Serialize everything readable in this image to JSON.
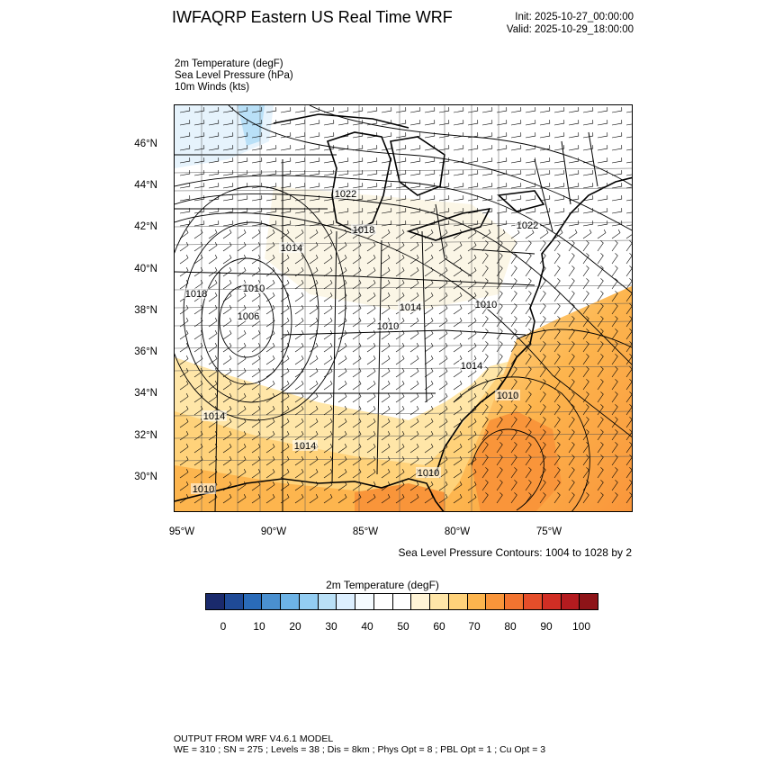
{
  "header": {
    "title": "IWFAQRP Eastern US Real Time WRF",
    "init": "Init: 2025-10-27_00:00:00",
    "valid": "Valid: 2025-10-29_18:00:00"
  },
  "fields": [
    "2m Temperature   (degF)",
    "Sea Level Pressure   (hPa)",
    "10m Winds   (kts)"
  ],
  "map": {
    "lat_labels": [
      "46°N",
      "44°N",
      "42°N",
      "40°N",
      "38°N",
      "36°N",
      "34°N",
      "32°N",
      "30°N"
    ],
    "lon_labels": [
      "95°W",
      "90°W",
      "85°W",
      "80°W",
      "75°W"
    ],
    "pressure_labels": [
      "1022",
      "1018",
      "1014",
      "1010",
      "1006",
      "1018",
      "1014",
      "1010",
      "1022",
      "1014",
      "1014",
      "1014",
      "1010",
      "1010",
      "1010",
      "1010"
    ],
    "contour_caption": "Sea Level Pressure Contours: 1004 to 1028 by 2"
  },
  "colorbar": {
    "title": "2m Temperature  (degF)",
    "labels": [
      "0",
      "10",
      "20",
      "30",
      "40",
      "50",
      "60",
      "70",
      "80",
      "90",
      "100"
    ],
    "colors": [
      "#1a2a6c",
      "#1f4a96",
      "#2a6bb8",
      "#4a90d0",
      "#6db3e6",
      "#93cdf2",
      "#b9e0f7",
      "#dcefff",
      "#f5fbff",
      "#ffffff",
      "#ffffff",
      "#fff4d6",
      "#ffe6a8",
      "#ffd27a",
      "#fdb54e",
      "#f9953a",
      "#f27430",
      "#e54e2a",
      "#d12e24",
      "#b41b1f",
      "#8e1418"
    ]
  },
  "footer": {
    "line1": "OUTPUT FROM WRF V4.6.1 MODEL",
    "line2": "WE = 310 ; SN = 275 ; Levels = 38 ; Dis = 8km ; Phys Opt = 8 ; PBL Opt = 1 ; Cu Opt = 3"
  }
}
